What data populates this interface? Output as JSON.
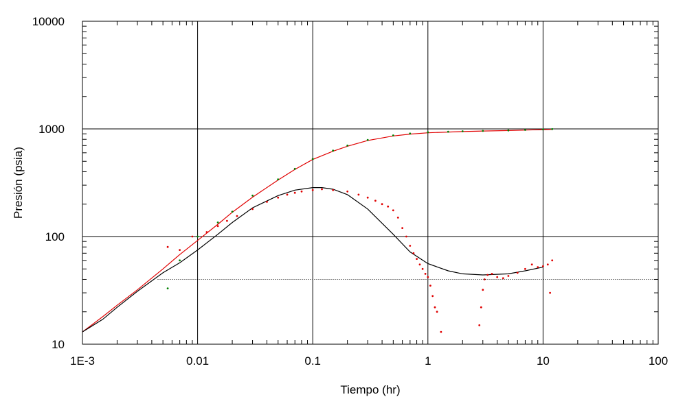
{
  "chart_data": {
    "type": "scatter",
    "xlabel": "Tiempo (hr)",
    "ylabel": "Presión (psia)",
    "x_scale": "log",
    "y_scale": "log",
    "xlim": [
      0.001,
      100
    ],
    "ylim": [
      10,
      10000
    ],
    "x_ticks": [
      {
        "value": 0.001,
        "label": "1E-3"
      },
      {
        "value": 0.01,
        "label": "0.01"
      },
      {
        "value": 0.1,
        "label": "0.1"
      },
      {
        "value": 1,
        "label": "1"
      },
      {
        "value": 10,
        "label": "10"
      },
      {
        "value": 100,
        "label": "100"
      }
    ],
    "y_ticks": [
      {
        "value": 10,
        "label": "10"
      },
      {
        "value": 100,
        "label": "100"
      },
      {
        "value": 1000,
        "label": "1000"
      },
      {
        "value": 10000,
        "label": "10000"
      }
    ],
    "grid": true,
    "colors": {
      "model_line": "#000000",
      "fit_line": "#e00000",
      "pressure_points": "#008000",
      "derivative_points": "#e00000",
      "grid": "#000000"
    },
    "series": [
      {
        "kind": "line",
        "color_key": "fit_line",
        "x": [
          0.001,
          0.0015,
          0.002,
          0.003,
          0.005,
          0.007,
          0.01,
          0.015,
          0.02,
          0.03,
          0.05,
          0.07,
          0.1,
          0.15,
          0.2,
          0.3,
          0.5,
          0.7,
          1,
          1.5,
          2,
          3,
          5,
          7,
          10,
          12
        ],
        "y": [
          13,
          18,
          23,
          32,
          50,
          68,
          92,
          130,
          168,
          232,
          335,
          420,
          520,
          620,
          690,
          780,
          860,
          895,
          920,
          935,
          945,
          955,
          965,
          975,
          985,
          990
        ]
      },
      {
        "kind": "points",
        "color_key": "pressure_points",
        "x": [
          0.0055,
          0.007,
          0.01,
          0.015,
          0.02,
          0.03,
          0.05,
          0.07,
          0.1,
          0.15,
          0.2,
          0.3,
          0.5,
          0.7,
          1,
          1.5,
          2,
          3,
          5,
          7,
          10,
          12
        ],
        "y": [
          33,
          60,
          100,
          135,
          170,
          240,
          340,
          425,
          525,
          628,
          700,
          790,
          870,
          905,
          930,
          942,
          950,
          958,
          968,
          978,
          988,
          995
        ]
      },
      {
        "kind": "line",
        "color_key": "model_line",
        "x": [
          0.001,
          0.0015,
          0.002,
          0.003,
          0.005,
          0.007,
          0.01,
          0.015,
          0.02,
          0.03,
          0.05,
          0.07,
          0.1,
          0.12,
          0.15,
          0.2,
          0.3,
          0.5,
          0.7,
          1,
          1.5,
          2,
          3,
          5,
          7,
          10
        ],
        "y": [
          13,
          17,
          22,
          31,
          46,
          57,
          75,
          105,
          135,
          185,
          240,
          270,
          285,
          285,
          275,
          245,
          180,
          105,
          72,
          56,
          48,
          45,
          44,
          45,
          48,
          52
        ]
      },
      {
        "kind": "points",
        "color_key": "derivative_points",
        "x": [
          0.0055,
          0.007,
          0.009,
          0.012,
          0.015,
          0.018,
          0.022,
          0.03,
          0.04,
          0.05,
          0.06,
          0.07,
          0.08,
          0.1,
          0.12,
          0.15,
          0.2,
          0.25,
          0.3,
          0.35,
          0.4,
          0.45,
          0.5,
          0.55,
          0.6,
          0.65,
          0.7,
          0.75,
          0.8,
          0.85,
          0.9,
          0.95,
          1,
          1.05,
          1.1,
          1.15,
          1.2,
          1.3,
          2.8,
          2.9,
          3.0,
          3.1,
          3.3,
          3.6,
          4.0,
          4.5,
          5,
          6,
          7,
          8,
          9,
          10,
          11,
          11.5,
          12
        ],
        "y": [
          80,
          75,
          100,
          110,
          125,
          140,
          155,
          180,
          210,
          230,
          245,
          255,
          262,
          270,
          275,
          270,
          262,
          245,
          230,
          215,
          200,
          190,
          175,
          150,
          120,
          100,
          82,
          70,
          62,
          55,
          50,
          45,
          42,
          35,
          28,
          22,
          20,
          13,
          15,
          22,
          32,
          40,
          44,
          45,
          42,
          41,
          43,
          46,
          50,
          55,
          52,
          53,
          55,
          30,
          60
        ]
      },
      {
        "kind": "dotted",
        "color_key": "model_line",
        "x": [
          0.0045,
          100
        ],
        "y": [
          40,
          40
        ]
      }
    ]
  }
}
